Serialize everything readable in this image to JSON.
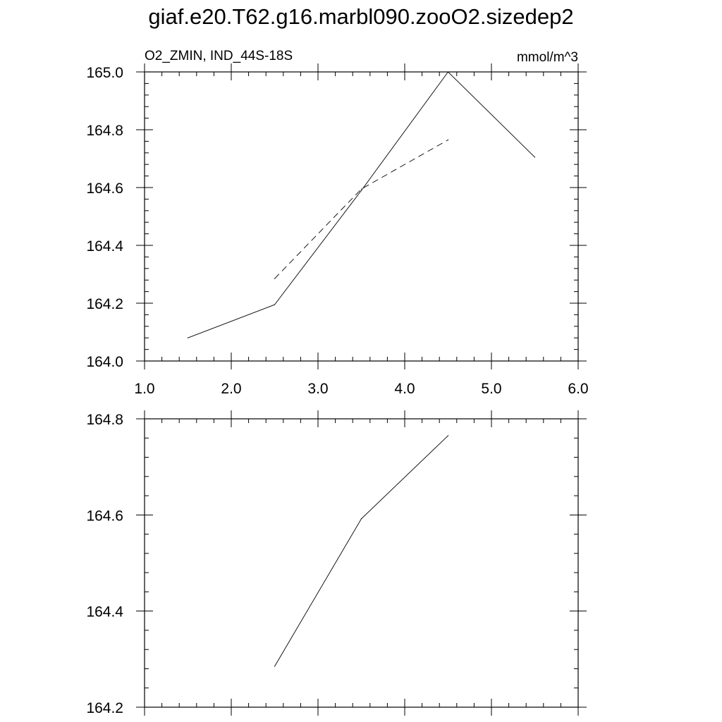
{
  "title": "giaf.e20.T62.g16.marbl090.zooO2.sizedep2",
  "chart_data": [
    {
      "type": "line",
      "subtitle_left": "O2_ZMIN, IND_44S-18S",
      "subtitle_right": "mmol/m^3",
      "xlim": [
        1.0,
        6.0
      ],
      "ylim": [
        164.0,
        165.0
      ],
      "x_ticks": [
        1.0,
        2.0,
        3.0,
        4.0,
        5.0,
        6.0
      ],
      "x_tick_labels": [
        "1.0",
        "2.0",
        "3.0",
        "4.0",
        "5.0",
        "6.0"
      ],
      "y_ticks": [
        164.0,
        164.2,
        164.4,
        164.6,
        164.8,
        165.0
      ],
      "y_tick_labels": [
        "164.0",
        "164.2",
        "164.4",
        "164.6",
        "164.8",
        "165.0"
      ],
      "grid": false,
      "series": [
        {
          "style": "solid",
          "x": [
            1.5,
            2.5,
            3.5,
            4.5,
            5.5
          ],
          "y": [
            164.08,
            164.195,
            164.59,
            165.0,
            164.705
          ]
        },
        {
          "style": "dashed",
          "x": [
            2.5,
            3.5,
            4.5
          ],
          "y": [
            164.285,
            164.595,
            164.765
          ]
        }
      ]
    },
    {
      "type": "line",
      "xlim": [
        1.0,
        6.0
      ],
      "ylim": [
        164.2,
        164.8
      ],
      "x_ticks": [
        1.0,
        2.0,
        3.0,
        4.0,
        5.0,
        6.0
      ],
      "y_ticks": [
        164.2,
        164.4,
        164.6,
        164.8
      ],
      "y_tick_labels": [
        "164.2",
        "164.4",
        "164.6",
        "164.8"
      ],
      "grid": false,
      "series": [
        {
          "style": "solid",
          "x": [
            2.5,
            3.5,
            4.5
          ],
          "y": [
            164.285,
            164.592,
            164.765
          ]
        }
      ]
    }
  ]
}
